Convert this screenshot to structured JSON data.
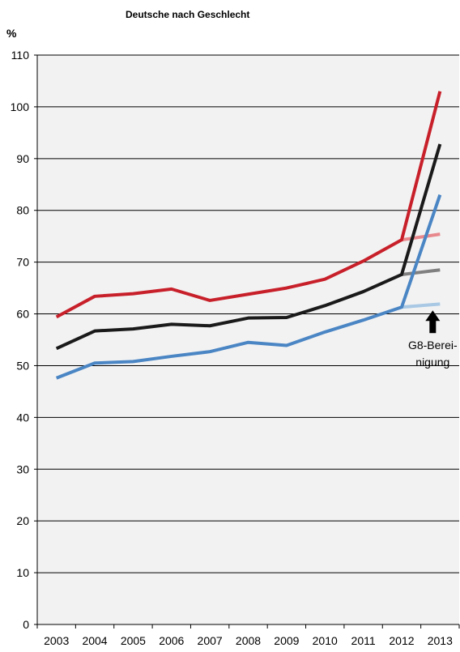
{
  "chart_data": {
    "type": "line",
    "title": "Deutsche nach Geschlecht",
    "unit_label": "%",
    "xlabel": "",
    "ylabel": "",
    "x": [
      "2003",
      "2004",
      "2005",
      "2006",
      "2007",
      "2008",
      "2009",
      "2010",
      "2011",
      "2012",
      "2013"
    ],
    "ylim": [
      0,
      110
    ],
    "yticks": [
      0,
      10,
      20,
      30,
      40,
      50,
      60,
      70,
      80,
      90,
      100,
      110
    ],
    "grid": true,
    "series": [
      {
        "color": "#c8202a",
        "values": [
          59.4,
          63.4,
          63.9,
          64.8,
          62.6,
          63.8,
          65.0,
          66.7,
          70.2,
          74.3,
          103.0
        ],
        "adjusted_values": [
          74.3,
          75.4
        ],
        "adjusted_color": "#e8888c"
      },
      {
        "color": "#1a1a1a",
        "values": [
          53.3,
          56.7,
          57.1,
          58.0,
          57.7,
          59.2,
          59.3,
          61.6,
          64.3,
          67.6,
          92.8
        ],
        "adjusted_values": [
          67.6,
          68.5
        ],
        "adjusted_color": "#808080"
      },
      {
        "color": "#4a85c4",
        "values": [
          47.6,
          50.5,
          50.8,
          51.8,
          52.7,
          54.5,
          53.9,
          56.5,
          58.8,
          61.3,
          83.0
        ],
        "adjusted_values": [
          61.3,
          61.9
        ],
        "adjusted_color": "#a8c8e4"
      }
    ],
    "annotation": {
      "lines": [
        "G8-Berei-",
        "nigung"
      ],
      "arrow_color": "#000000"
    }
  }
}
